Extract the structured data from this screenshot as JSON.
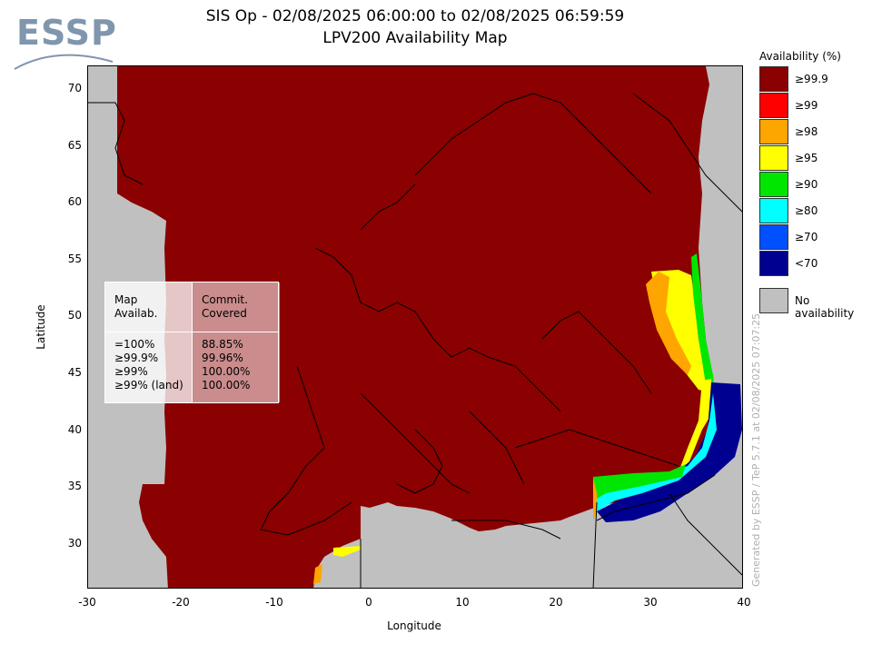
{
  "logo": {
    "text": "ESSP"
  },
  "title": {
    "line1": "SIS Op - 02/08/2025 06:00:00 to 02/08/2025 06:59:59",
    "line2": "LPV200 Availability Map"
  },
  "axes": {
    "xlabel": "Longitude",
    "ylabel": "Latitude",
    "xticks": [
      "-30",
      "-20",
      "-10",
      "0",
      "10",
      "20",
      "30",
      "40"
    ],
    "yticks": [
      "70",
      "65",
      "60",
      "55",
      "50",
      "45",
      "40",
      "35",
      "30"
    ],
    "xlim": [
      -30,
      40
    ],
    "ylim": [
      26,
      72
    ]
  },
  "legend": {
    "title": "Availability (%)",
    "items": [
      {
        "label": "≥99.9",
        "color": "#8b0000"
      },
      {
        "label": "≥99",
        "color": "#ff0000"
      },
      {
        "label": "≥98",
        "color": "#ffa500"
      },
      {
        "label": "≥95",
        "color": "#ffff00"
      },
      {
        "label": "≥90",
        "color": "#00e600"
      },
      {
        "label": "≥80",
        "color": "#00ffff"
      },
      {
        "label": "≥70",
        "color": "#0050ff"
      },
      {
        "label": "<70",
        "color": "#000090"
      }
    ],
    "no_availability": {
      "label": "No availability",
      "color": "#c0c0c0"
    }
  },
  "stats_table": {
    "header_left": "Map\nAvailab.",
    "header_right": "Commit.\nCovered",
    "rows": [
      {
        "left": "=100%",
        "right": "88.85%"
      },
      {
        "left": "≥99.9%",
        "right": "99.96%"
      },
      {
        "left": "≥99%",
        "right": "100.00%"
      },
      {
        "left": "≥99% (land)",
        "right": "100.00%"
      }
    ]
  },
  "credit": "Generated by ESSP / TeP 5.7.1 at 02/08/2025 07:07:25",
  "colors": {
    "availability_high": "#8b0000",
    "no_availability": "#c0c0c0",
    "coastline": "#000000"
  }
}
